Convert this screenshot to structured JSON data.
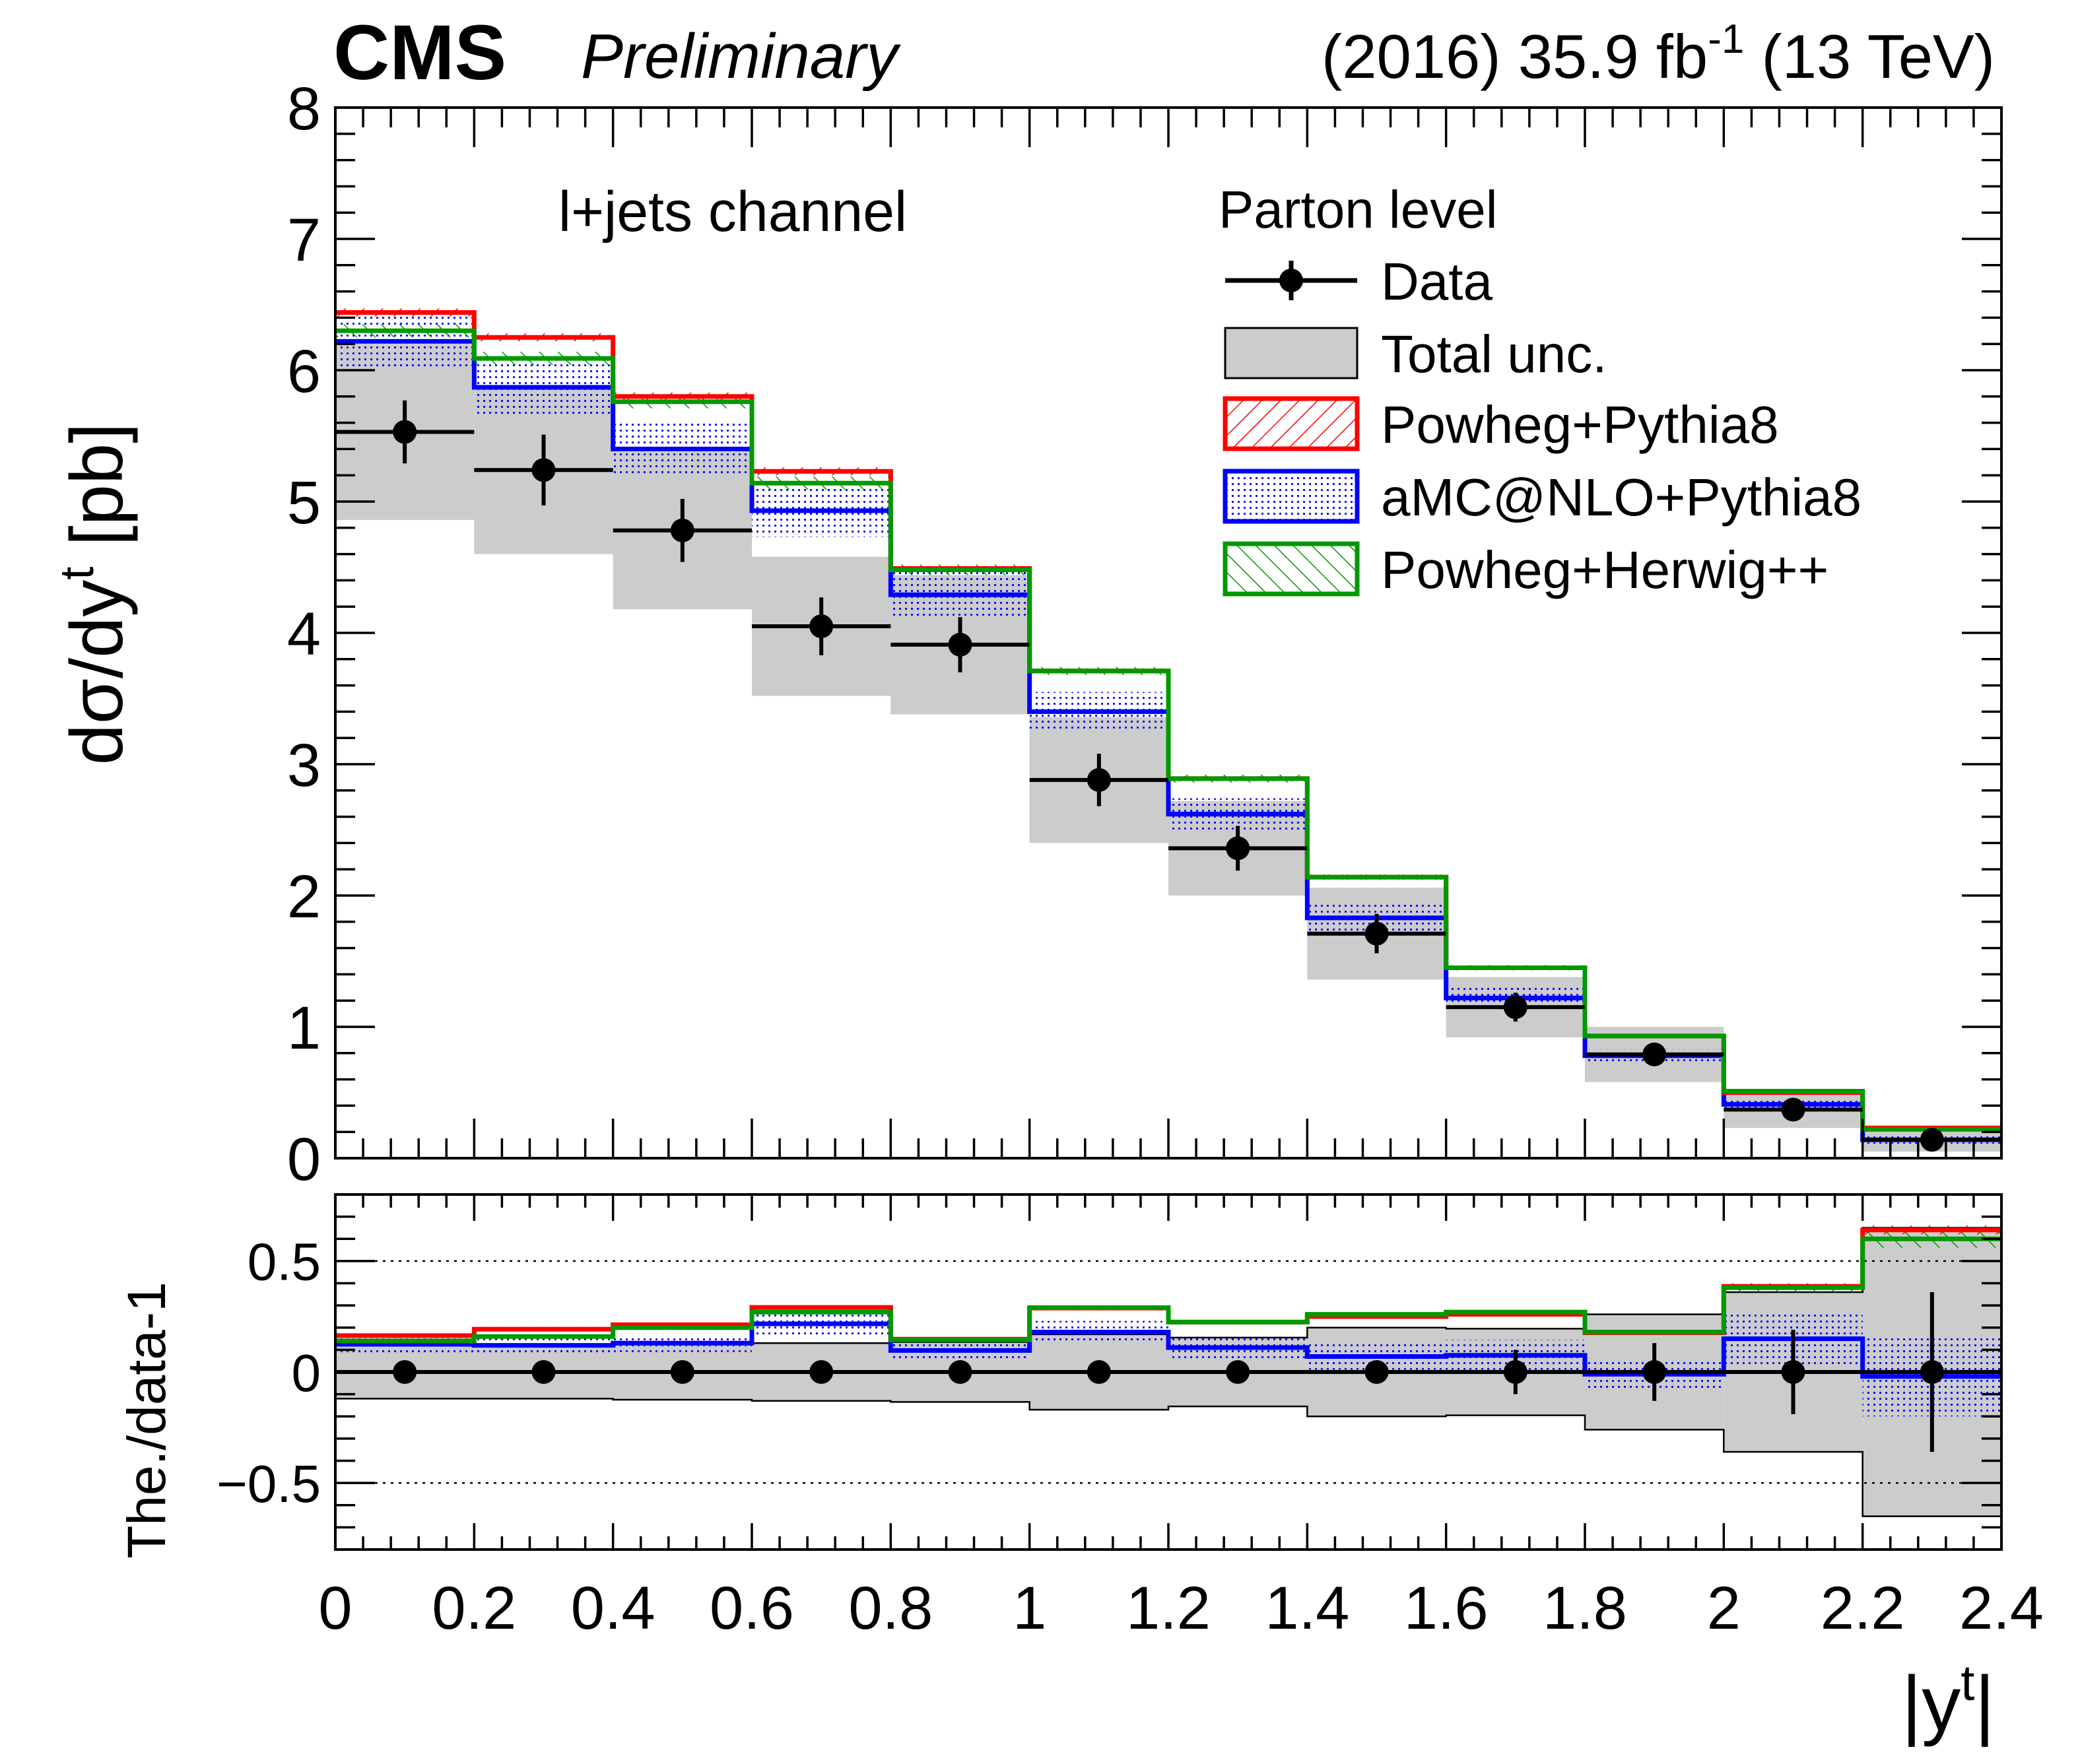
{
  "header": {
    "experiment": "CMS",
    "status": "Preliminary",
    "lumi_prefix": "(2016) 35.9 fb",
    "lumi_exp": "-1",
    "lumi_suffix": " (13 TeV)"
  },
  "colors": {
    "data": "#000000",
    "total_unc": "#cccccc",
    "powheg_pythia8": "#ff0000",
    "amc_nlo_pythia8": "#0000ff",
    "powheg_herwig": "#009900"
  },
  "chart_data": {
    "type": "bar",
    "bin_edges": [
      0,
      0.2,
      0.4,
      0.6,
      0.8,
      1.0,
      1.2,
      1.4,
      1.6,
      1.8,
      2.0,
      2.2,
      2.4
    ],
    "x_label_main": "|y",
    "x_label_sup": "t",
    "x_ticks": [
      "0",
      "0.2",
      "0.4",
      "0.6",
      "0.8",
      "1",
      "1.2",
      "1.4",
      "1.6",
      "1.8",
      "2",
      "2.2",
      "2.4"
    ],
    "xlim": [
      0,
      2.4
    ],
    "top": {
      "ylabel_main": "dσ/dy",
      "ylabel_sup": "t",
      "ylabel_unit": " [pb]",
      "ylim": [
        0,
        8
      ],
      "y_ticks": [
        "0",
        "1",
        "2",
        "3",
        "4",
        "5",
        "6",
        "7",
        "8"
      ],
      "channel_label": "l+jets channel",
      "legend_title": "Parton level",
      "data": {
        "name": "Data",
        "values": [
          5.53,
          5.24,
          4.78,
          4.05,
          3.91,
          2.88,
          2.36,
          1.71,
          1.15,
          0.79,
          0.37,
          0.14
        ],
        "err": [
          0.24,
          0.27,
          0.24,
          0.22,
          0.21,
          0.2,
          0.17,
          0.15,
          0.11,
          0.07,
          0.07,
          0.06
        ]
      },
      "total_unc": {
        "name": "Total unc.",
        "low": [
          4.86,
          4.6,
          4.18,
          3.52,
          3.38,
          2.4,
          2.0,
          1.36,
          0.92,
          0.58,
          0.23,
          0.05
        ],
        "high": [
          6.2,
          5.88,
          5.38,
          4.58,
          4.44,
          3.36,
          2.72,
          2.06,
          1.38,
          1.0,
          0.51,
          0.23
        ]
      },
      "series": [
        {
          "name": "Powheg+Pythia8",
          "color_key": "powheg_pythia8",
          "values": [
            6.44,
            6.25,
            5.8,
            5.23,
            4.49,
            3.71,
            2.89,
            2.14,
            1.45,
            0.93,
            0.5,
            0.23
          ],
          "band": [
            0.03,
            0.03,
            0.03,
            0.03,
            0.02,
            0.02,
            0.02,
            0.02,
            0.01,
            0.01,
            0.01,
            0.01
          ]
        },
        {
          "name": "aMC@NLO+Pythia8",
          "color_key": "amc_nlo_pythia8",
          "values": [
            6.22,
            5.87,
            5.4,
            4.93,
            4.29,
            3.4,
            2.62,
            1.83,
            1.22,
            0.78,
            0.41,
            0.14
          ],
          "band": [
            0.22,
            0.22,
            0.2,
            0.2,
            0.18,
            0.15,
            0.12,
            0.1,
            0.08,
            0.05,
            0.04,
            0.03
          ]
        },
        {
          "name": "Powheg+Herwig++",
          "color_key": "powheg_herwig",
          "values": [
            6.3,
            6.09,
            5.76,
            5.14,
            4.48,
            3.71,
            2.89,
            2.14,
            1.45,
            0.93,
            0.51,
            0.22
          ],
          "band": [
            0.05,
            0.05,
            0.05,
            0.05,
            0.04,
            0.03,
            0.03,
            0.02,
            0.02,
            0.01,
            0.01,
            0.01
          ]
        }
      ]
    },
    "ratio": {
      "ylabel": "The./data-1",
      "ylim": [
        -0.8,
        0.8
      ],
      "y_ticks": [
        {
          "v": 0.5,
          "label": "0.5"
        },
        {
          "v": 0,
          "label": "0"
        },
        {
          "v": -0.5,
          "label": "−0.5"
        }
      ],
      "reference_lines": [
        0.5,
        -0.5
      ],
      "data": {
        "values": [
          0,
          0,
          0,
          0,
          0,
          0,
          0,
          0,
          0,
          0,
          0,
          0
        ],
        "err": [
          0,
          0,
          0,
          0,
          0,
          0,
          0,
          0,
          0.1,
          0.13,
          0.19,
          0.36
        ]
      },
      "total_unc": {
        "low": [
          -0.12,
          -0.12,
          -0.125,
          -0.13,
          -0.135,
          -0.17,
          -0.155,
          -0.2,
          -0.195,
          -0.26,
          -0.36,
          -0.65
        ],
        "high": [
          0.12,
          0.12,
          0.125,
          0.13,
          0.135,
          0.17,
          0.155,
          0.2,
          0.195,
          0.26,
          0.36,
          0.65
        ]
      },
      "series": [
        {
          "name": "Powheg+Pythia8",
          "color_key": "powheg_pythia8",
          "values": [
            0.164,
            0.193,
            0.213,
            0.291,
            0.148,
            0.288,
            0.225,
            0.25,
            0.26,
            0.177,
            0.386,
            0.64
          ],
          "band": [
            0.01,
            0.01,
            0.01,
            0.01,
            0.01,
            0.01,
            0.01,
            0.01,
            0.01,
            0.01,
            0.01,
            0.02
          ]
        },
        {
          "name": "aMC@NLO+Pythia8",
          "color_key": "amc_nlo_pythia8",
          "values": [
            0.125,
            0.12,
            0.13,
            0.217,
            0.097,
            0.18,
            0.11,
            0.07,
            0.075,
            -0.01,
            0.15,
            -0.02
          ],
          "band": [
            0.04,
            0.04,
            0.04,
            0.05,
            0.05,
            0.05,
            0.05,
            0.06,
            0.07,
            0.07,
            0.12,
            0.18
          ]
        },
        {
          "name": "Powheg+Herwig++",
          "color_key": "powheg_herwig",
          "values": [
            0.14,
            0.16,
            0.2,
            0.27,
            0.145,
            0.29,
            0.225,
            0.26,
            0.27,
            0.18,
            0.38,
            0.6
          ],
          "band": [
            0.01,
            0.01,
            0.01,
            0.01,
            0.01,
            0.01,
            0.01,
            0.01,
            0.01,
            0.01,
            0.02,
            0.04
          ]
        }
      ]
    }
  }
}
